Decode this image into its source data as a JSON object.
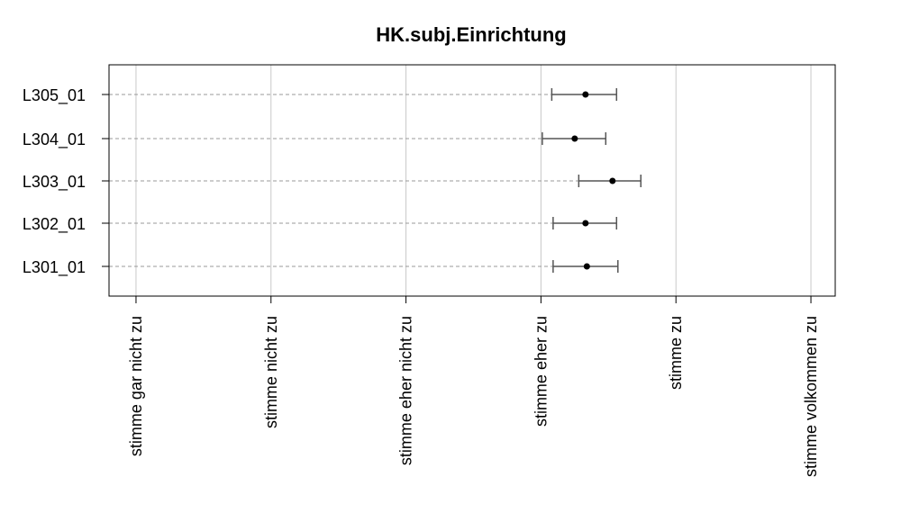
{
  "chart_data": {
    "type": "errorbar",
    "title": "HK.subj.Einrichtung",
    "xlabel": "",
    "ylabel": "",
    "x_categories": [
      "stimme gar nicht zu",
      "stimme nicht zu",
      "stimme eher nicht zu",
      "stimme eher zu",
      "stimme zu",
      "stimme volkommen zu"
    ],
    "xlim": [
      0.8,
      6.18
    ],
    "grid": true,
    "items": [
      {
        "label": "L305_01",
        "mean": 4.33,
        "lower": 4.08,
        "upper": 4.56
      },
      {
        "label": "L304_01",
        "mean": 4.25,
        "lower": 4.01,
        "upper": 4.48
      },
      {
        "label": "L303_01",
        "mean": 4.53,
        "lower": 4.28,
        "upper": 4.74
      },
      {
        "label": "L302_01",
        "mean": 4.33,
        "lower": 4.09,
        "upper": 4.56
      },
      {
        "label": "L301_01",
        "mean": 4.34,
        "lower": 4.09,
        "upper": 4.57
      }
    ],
    "colors": {
      "point": "#000000",
      "errorbar": "#555555",
      "guide": "#999999",
      "grid": "#c8c8c8"
    }
  }
}
